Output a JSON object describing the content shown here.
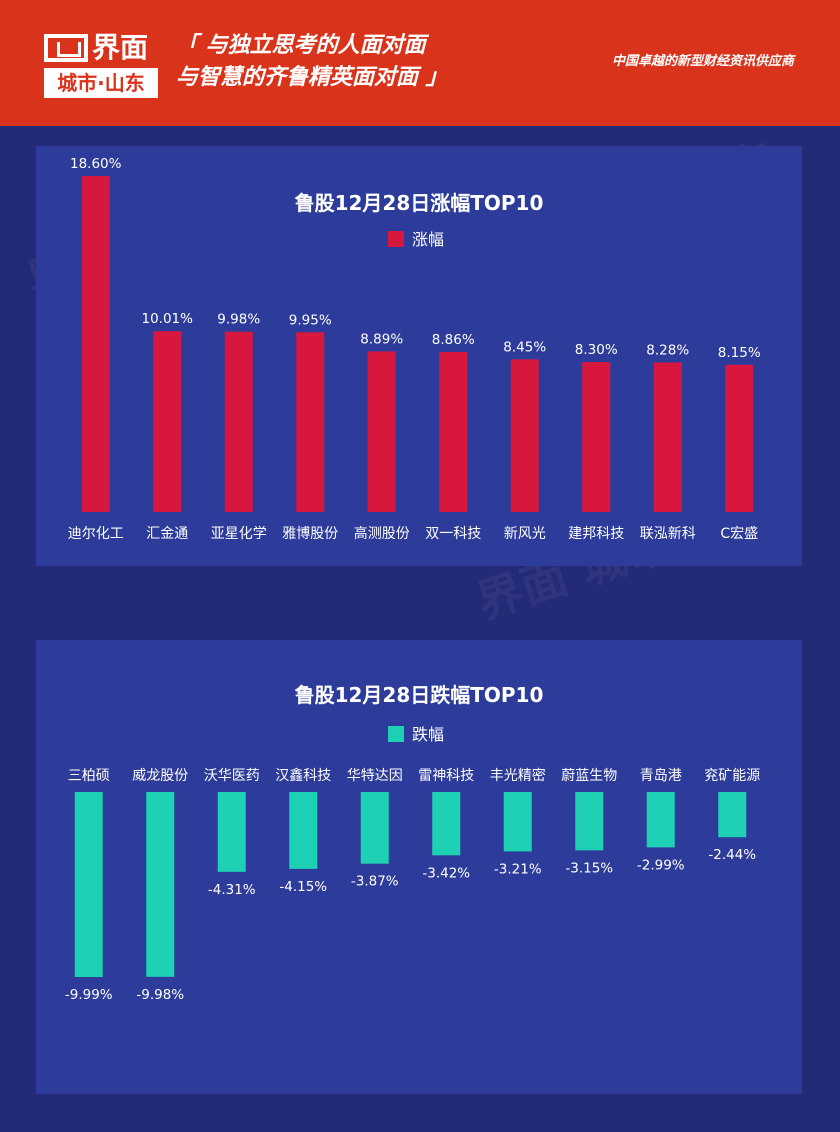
{
  "header": {
    "logo_main": "界面",
    "logo_sub": "城市·山东",
    "slogan_line1": "「 与独立思考的人面对面",
    "slogan_line2": "与智慧的齐鲁精英面对面 」",
    "supplier": "中国卓越的新型财经资讯供应商",
    "bg_color": "#d9331c"
  },
  "watermark_text": "界面 城市·山东",
  "chart_data": [
    {
      "type": "bar",
      "title": "鲁股12月28日涨幅TOP10",
      "series": [
        {
          "name": "涨幅",
          "color": "#d8173f",
          "values": [
            18.6,
            10.01,
            9.98,
            9.95,
            8.89,
            8.86,
            8.45,
            8.3,
            8.28,
            8.15
          ],
          "labels": [
            "18.60%",
            "10.01%",
            "9.98%",
            "9.95%",
            "8.89%",
            "8.86%",
            "8.45%",
            "8.30%",
            "8.28%",
            "8.15%"
          ]
        }
      ],
      "categories": [
        "迪尔化工",
        "汇金通",
        "亚星化学",
        "雅博股份",
        "高测股份",
        "双一科技",
        "新风光",
        "建邦科技",
        "联泓新科",
        "C宏盛"
      ],
      "ylim": [
        0,
        18.6
      ],
      "legend": "top-center",
      "grid": false
    },
    {
      "type": "bar",
      "title": "鲁股12月28日跌幅TOP10",
      "series": [
        {
          "name": "跌幅",
          "color": "#1fd1b4",
          "values": [
            -9.99,
            -9.98,
            -4.31,
            -4.15,
            -3.87,
            -3.42,
            -3.21,
            -3.15,
            -2.99,
            -2.44
          ],
          "labels": [
            "-9.99%",
            "-9.98%",
            "-4.31%",
            "-4.15%",
            "-3.87%",
            "-3.42%",
            "-3.21%",
            "-3.15%",
            "-2.99%",
            "-2.44%"
          ]
        }
      ],
      "categories": [
        "三柏硕",
        "威龙股份",
        "沃华医药",
        "汉鑫科技",
        "华特达因",
        "雷神科技",
        "丰光精密",
        "蔚蓝生物",
        "青岛港",
        "兖矿能源"
      ],
      "ylim": [
        -9.99,
        0
      ],
      "legend": "top-center",
      "grid": false
    }
  ]
}
